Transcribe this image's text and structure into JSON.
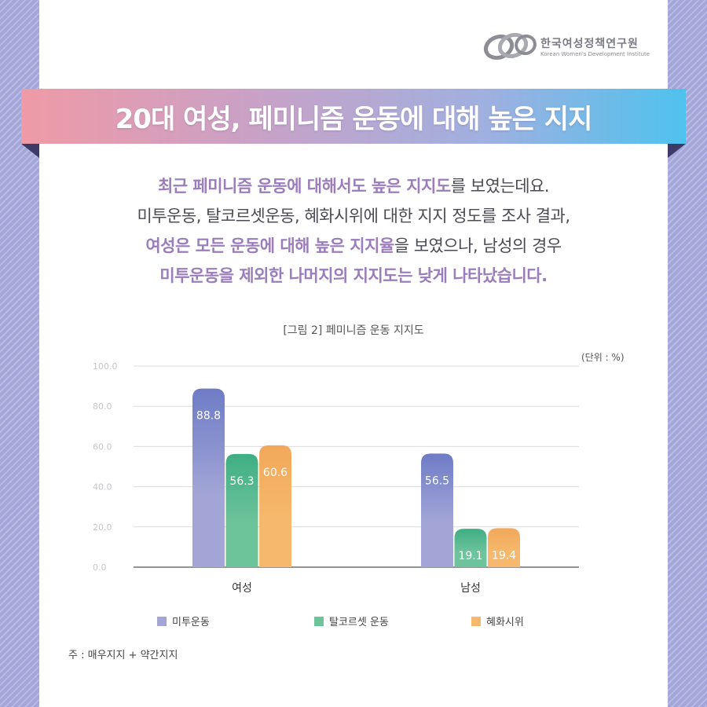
{
  "logo": {
    "name": "한국여성정책연구원",
    "subtitle": "Korean Women's Development Institute"
  },
  "banner": {
    "title": "20대 여성, 페미니즘 운동에 대해 높은 지지"
  },
  "description": {
    "line1_highlight": "최근 페미니즘 운동에 대해서도 높은 지지도",
    "line1_rest": "를 보였는데요.",
    "line2": "미투운동, 탈코르셋운동, 혜화시위에 대한 지지 정도를 조사 결과,",
    "line3_highlight": "여성은 모든 운동에 대해 높은 지지율",
    "line3_rest": "을 보였으나, 남성의 경우",
    "line4_highlight": "미투운동을 제외한 나머지의 지지도는 낮게 나타났습니다."
  },
  "colors": {
    "accent_text": "#9b7dbc",
    "metoo": "#a2a5d6",
    "metoo_top": "#6e7cc6",
    "corset": "#6dc39a",
    "corset_top": "#3fae83",
    "hyehwa": "#f5b86c",
    "hyehwa_top": "#f2a85a"
  },
  "chart_data": {
    "type": "bar",
    "title": "[그림 2] 페미니즘 운동 지지도",
    "unit_label": "(단위 : %)",
    "categories": [
      "여성",
      "남성"
    ],
    "series": [
      {
        "name": "미투운동",
        "values": [
          88.8,
          56.5
        ],
        "labels": [
          "88.8",
          "56.5"
        ],
        "color": "#a2a5d6"
      },
      {
        "name": "탈코르셋 운동",
        "values": [
          56.3,
          19.1
        ],
        "labels": [
          "56.3",
          "19.1"
        ],
        "color": "#6dc39a"
      },
      {
        "name": "혜화시위",
        "values": [
          60.6,
          19.4
        ],
        "labels": [
          "60.6",
          "19.4"
        ],
        "color": "#f5b86c"
      }
    ],
    "ylim": [
      0,
      100
    ],
    "yticks": [
      "0.0",
      "20.0",
      "40.0",
      "60.0",
      "80.0",
      "100.0"
    ],
    "grid": true,
    "legend": "bottom",
    "note": "주 : 매우지지 + 약간지지"
  }
}
